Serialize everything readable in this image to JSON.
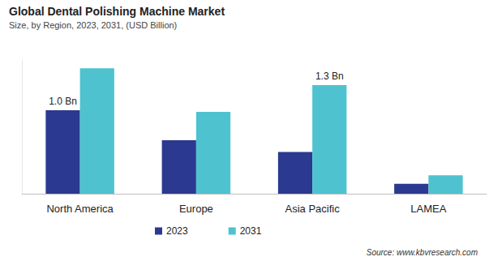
{
  "chart_data": {
    "type": "bar",
    "title": "Global Dental Polishing Machine Market",
    "subtitle": "Size, by Region, 2023, 2031, (USD Billion)",
    "source": "Source: www.kbvresearch.com",
    "categories": [
      "North America",
      "Europe",
      "Asia Pacific",
      "LAMEA"
    ],
    "series": [
      {
        "name": "2023",
        "color": "#2b3990",
        "values": [
          1.0,
          0.64,
          0.5,
          0.12
        ],
        "value_labels": [
          "1.0 Bn",
          null,
          null,
          null
        ]
      },
      {
        "name": "2031",
        "color": "#4ec3cf",
        "values": [
          1.5,
          0.98,
          1.3,
          0.22
        ],
        "value_labels": [
          null,
          null,
          "1.3 Bn",
          null
        ]
      }
    ],
    "ylim": [
      0,
      1.6
    ],
    "tick_labels": "x",
    "grid": false,
    "legend": "bottom"
  }
}
